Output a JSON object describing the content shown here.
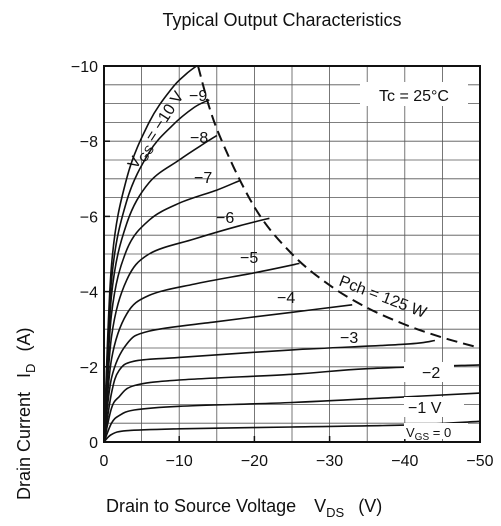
{
  "chart_data": {
    "type": "line",
    "title": "Typical Output Characteristics",
    "xlabel_main": "Drain to Source Voltage",
    "xlabel_symbol": "V",
    "xlabel_sub": "DS",
    "xlabel_unit": "(V)",
    "ylabel_main": "Drain Current",
    "ylabel_symbol": "I",
    "ylabel_sub": "D",
    "ylabel_unit": "(A)",
    "xlim": [
      0,
      -50
    ],
    "ylim": [
      0,
      -10
    ],
    "xticks": [
      0,
      -10,
      -20,
      -30,
      -40,
      -50
    ],
    "yticks": [
      0,
      -2,
      -4,
      -6,
      -8,
      -10
    ],
    "xtick_labels": [
      "0",
      "−10",
      "−20",
      "−30",
      "−40",
      "−50"
    ],
    "ytick_labels": [
      "0",
      "−2",
      "−4",
      "−6",
      "−8",
      "−10"
    ],
    "grid": true,
    "annotation_tc": "Tc = 25°C",
    "series": [
      {
        "label": "0",
        "points": [
          [
            0,
            0
          ],
          [
            -1,
            -0.2
          ],
          [
            -3,
            -0.3
          ],
          [
            -10,
            -0.35
          ],
          [
            -25,
            -0.4
          ],
          [
            -40,
            -0.45
          ],
          [
            -50,
            -0.55
          ]
        ]
      },
      {
        "label": "−1 V",
        "points": [
          [
            0,
            0
          ],
          [
            -1,
            -0.5
          ],
          [
            -2,
            -0.7
          ],
          [
            -4,
            -0.85
          ],
          [
            -10,
            -0.95
          ],
          [
            -25,
            -1.05
          ],
          [
            -40,
            -1.2
          ],
          [
            -50,
            -1.3
          ]
        ]
      },
      {
        "label": "−2",
        "points": [
          [
            0,
            0
          ],
          [
            -1,
            -0.9
          ],
          [
            -2,
            -1.2
          ],
          [
            -4,
            -1.5
          ],
          [
            -10,
            -1.65
          ],
          [
            -25,
            -1.8
          ],
          [
            -35,
            -1.95
          ],
          [
            -50,
            -2.05
          ]
        ]
      },
      {
        "label": "−3",
        "points": [
          [
            0,
            0
          ],
          [
            -1,
            -1.3
          ],
          [
            -2,
            -1.9
          ],
          [
            -4,
            -2.15
          ],
          [
            -10,
            -2.25
          ],
          [
            -25,
            -2.45
          ],
          [
            -40,
            -2.6
          ],
          [
            -44,
            -2.7
          ]
        ]
      },
      {
        "label": "−4",
        "points": [
          [
            0,
            0
          ],
          [
            -1,
            -1.7
          ],
          [
            -3,
            -2.6
          ],
          [
            -6,
            -2.95
          ],
          [
            -15,
            -3.2
          ],
          [
            -25,
            -3.45
          ],
          [
            -33,
            -3.65
          ]
        ]
      },
      {
        "label": "−5",
        "points": [
          [
            0,
            0
          ],
          [
            -1,
            -2.2
          ],
          [
            -3,
            -3.4
          ],
          [
            -6,
            -3.9
          ],
          [
            -12,
            -4.2
          ],
          [
            -20,
            -4.5
          ],
          [
            -26,
            -4.75
          ]
        ]
      },
      {
        "label": "−6",
        "points": [
          [
            0,
            0
          ],
          [
            -1,
            -2.8
          ],
          [
            -3,
            -4.3
          ],
          [
            -6,
            -5.0
          ],
          [
            -12,
            -5.4
          ],
          [
            -18,
            -5.75
          ],
          [
            -22,
            -5.95
          ]
        ]
      },
      {
        "label": "−7",
        "points": [
          [
            0,
            0
          ],
          [
            -1,
            -3.4
          ],
          [
            -3,
            -5.1
          ],
          [
            -6,
            -5.9
          ],
          [
            -10,
            -6.35
          ],
          [
            -15,
            -6.7
          ],
          [
            -18,
            -6.95
          ]
        ]
      },
      {
        "label": "−8",
        "points": [
          [
            0,
            0
          ],
          [
            -1,
            -3.9
          ],
          [
            -3,
            -5.8
          ],
          [
            -6,
            -6.9
          ],
          [
            -10,
            -7.5
          ],
          [
            -13,
            -7.9
          ],
          [
            -15,
            -8.15
          ]
        ]
      },
      {
        "label": "−9",
        "points": [
          [
            0,
            0
          ],
          [
            -1,
            -4.3
          ],
          [
            -3,
            -6.4
          ],
          [
            -6,
            -7.7
          ],
          [
            -9,
            -8.4
          ],
          [
            -12,
            -8.9
          ],
          [
            -14,
            -9.1
          ]
        ]
      },
      {
        "label": "−10 V",
        "points": [
          [
            0,
            0
          ],
          [
            -1,
            -4.7
          ],
          [
            -3,
            -7.0
          ],
          [
            -6,
            -8.5
          ],
          [
            -9,
            -9.4
          ],
          [
            -11,
            -9.8
          ],
          [
            -12.3,
            -10
          ]
        ]
      }
    ],
    "vgs_prefix": "V",
    "vgs_sub": "GS",
    "vgs_suffix": " = −10 V",
    "vgs0_prefix": "V",
    "vgs0_sub": "GS",
    "vgs0_suffix": " = 0",
    "power_curve": {
      "label": "Pch = 125 W",
      "points": [
        [
          -12.5,
          -10
        ],
        [
          -15,
          -8.33
        ],
        [
          -20,
          -6.25
        ],
        [
          -25,
          -5
        ],
        [
          -30,
          -4.17
        ],
        [
          -35,
          -3.57
        ],
        [
          -40,
          -3.125
        ],
        [
          -45,
          -2.78
        ],
        [
          -50,
          -2.5
        ]
      ]
    }
  }
}
